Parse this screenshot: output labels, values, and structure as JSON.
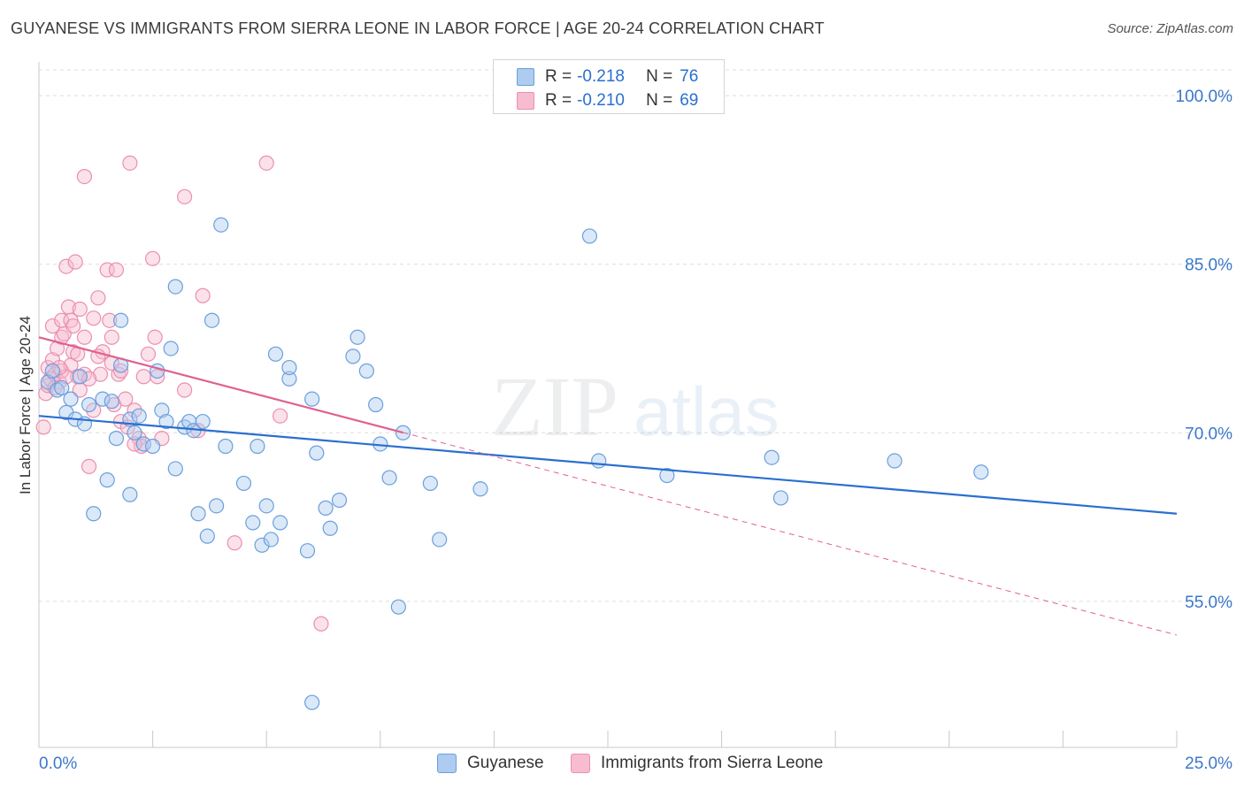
{
  "title": "GUYANESE VS IMMIGRANTS FROM SIERRA LEONE IN LABOR FORCE | AGE 20-24 CORRELATION CHART",
  "source": "Source: ZipAtlas.com",
  "colors": {
    "blue_fill": "#aecbf0",
    "blue_stroke": "#6a9fdc",
    "blue_line": "#2a6fd0",
    "pink_fill": "#f7bcd0",
    "pink_stroke": "#eb8fb0",
    "pink_line": "#e0608f",
    "axis_label": "#3b78c9",
    "grid": "#dddddd"
  },
  "stats_legend": [
    {
      "r_label": "R =",
      "r_value": "-0.218",
      "n_label": "N =",
      "n_value": "76"
    },
    {
      "r_label": "R =",
      "r_value": "-0.210",
      "n_label": "N =",
      "n_value": "69"
    }
  ],
  "chart_data": {
    "type": "scatter",
    "xlabel": "",
    "ylabel": "In Labor Force | Age 20-24",
    "xlim": [
      0,
      25
    ],
    "ylim": [
      42,
      103
    ],
    "x_tick_labels": [
      "0.0%",
      "25.0%"
    ],
    "y_ticks": [
      55,
      70,
      85,
      100
    ],
    "y_tick_labels": [
      "55.0%",
      "70.0%",
      "85.0%",
      "100.0%"
    ],
    "grid": true,
    "legend_position": "bottom-center",
    "series": [
      {
        "name": "Guyanese",
        "trend": {
          "x0": 0.0,
          "y0": 71.5,
          "x1": 25.0,
          "y1": 62.8,
          "dashed_from": null
        },
        "points": [
          [
            0.2,
            74.5
          ],
          [
            0.3,
            75.5
          ],
          [
            0.4,
            73.8
          ],
          [
            0.5,
            74
          ],
          [
            0.6,
            71.8
          ],
          [
            0.7,
            73
          ],
          [
            0.8,
            71.2
          ],
          [
            0.9,
            75
          ],
          [
            1.0,
            70.8
          ],
          [
            1.1,
            72.5
          ],
          [
            1.2,
            62.8
          ],
          [
            1.4,
            73
          ],
          [
            1.5,
            65.8
          ],
          [
            1.6,
            72.8
          ],
          [
            1.7,
            69.5
          ],
          [
            1.8,
            80
          ],
          [
            1.8,
            76
          ],
          [
            2.0,
            64.5
          ],
          [
            2.0,
            71.2
          ],
          [
            2.1,
            70
          ],
          [
            2.2,
            71.5
          ],
          [
            2.3,
            69
          ],
          [
            2.5,
            68.8
          ],
          [
            2.6,
            75.5
          ],
          [
            2.7,
            72
          ],
          [
            2.8,
            71
          ],
          [
            2.9,
            77.5
          ],
          [
            3.0,
            83
          ],
          [
            3.0,
            66.8
          ],
          [
            3.2,
            70.5
          ],
          [
            3.3,
            71
          ],
          [
            3.4,
            70.2
          ],
          [
            3.5,
            62.8
          ],
          [
            3.6,
            71
          ],
          [
            3.7,
            60.8
          ],
          [
            3.8,
            80
          ],
          [
            3.9,
            63.5
          ],
          [
            4.0,
            88.5
          ],
          [
            4.1,
            68.8
          ],
          [
            4.5,
            65.5
          ],
          [
            4.7,
            62
          ],
          [
            4.8,
            68.8
          ],
          [
            4.9,
            60
          ],
          [
            5.0,
            63.5
          ],
          [
            5.1,
            60.5
          ],
          [
            5.2,
            77
          ],
          [
            5.3,
            62
          ],
          [
            5.5,
            74.8
          ],
          [
            5.5,
            75.8
          ],
          [
            5.9,
            59.5
          ],
          [
            6.0,
            73
          ],
          [
            6.1,
            68.2
          ],
          [
            6.3,
            63.3
          ],
          [
            6.4,
            61.5
          ],
          [
            6.6,
            64
          ],
          [
            6.9,
            76.8
          ],
          [
            7.0,
            78.5
          ],
          [
            7.2,
            75.5
          ],
          [
            7.4,
            72.5
          ],
          [
            7.5,
            69
          ],
          [
            7.7,
            66
          ],
          [
            7.9,
            54.5
          ],
          [
            8.0,
            70
          ],
          [
            8.6,
            65.5
          ],
          [
            8.8,
            60.5
          ],
          [
            9.7,
            65
          ],
          [
            12.1,
            87.5
          ],
          [
            12.3,
            67.5
          ],
          [
            13.8,
            66.2
          ],
          [
            16.1,
            67.8
          ],
          [
            16.3,
            64.2
          ],
          [
            18.8,
            67.5
          ],
          [
            20.7,
            66.5
          ],
          [
            6.0,
            46
          ]
        ]
      },
      {
        "name": "Immigrants from Sierra Leone",
        "trend": {
          "x0": 0.0,
          "y0": 78.5,
          "x1": 25.0,
          "y1": 52.0,
          "dashed_from": 8.0
        },
        "points": [
          [
            0.1,
            70.5
          ],
          [
            0.15,
            73.5
          ],
          [
            0.2,
            75.8
          ],
          [
            0.2,
            74.2
          ],
          [
            0.25,
            74.8
          ],
          [
            0.3,
            76.5
          ],
          [
            0.3,
            79.5
          ],
          [
            0.35,
            75.2
          ],
          [
            0.4,
            77.5
          ],
          [
            0.45,
            74.5
          ],
          [
            0.5,
            80
          ],
          [
            0.5,
            78.5
          ],
          [
            0.5,
            75.5
          ],
          [
            0.55,
            78.8
          ],
          [
            0.6,
            84.8
          ],
          [
            0.65,
            81.2
          ],
          [
            0.7,
            80
          ],
          [
            0.7,
            76
          ],
          [
            0.75,
            77.2
          ],
          [
            0.8,
            85.2
          ],
          [
            0.85,
            77
          ],
          [
            0.85,
            75
          ],
          [
            0.9,
            81
          ],
          [
            0.9,
            73.8
          ],
          [
            1.0,
            75.2
          ],
          [
            1.0,
            78.5
          ],
          [
            1.0,
            92.8
          ],
          [
            1.1,
            67
          ],
          [
            1.2,
            72
          ],
          [
            1.2,
            80.2
          ],
          [
            1.3,
            82
          ],
          [
            1.35,
            75.2
          ],
          [
            1.4,
            77.2
          ],
          [
            1.5,
            84.5
          ],
          [
            1.55,
            80
          ],
          [
            1.6,
            78.5
          ],
          [
            1.6,
            76.2
          ],
          [
            1.65,
            72.5
          ],
          [
            1.7,
            84.5
          ],
          [
            1.75,
            75.2
          ],
          [
            1.8,
            71
          ],
          [
            1.9,
            73
          ],
          [
            1.95,
            70.5
          ],
          [
            2.0,
            94
          ],
          [
            2.1,
            72
          ],
          [
            2.2,
            69.5
          ],
          [
            2.25,
            68.8
          ],
          [
            2.3,
            75
          ],
          [
            2.4,
            77
          ],
          [
            2.5,
            85.5
          ],
          [
            2.55,
            78.5
          ],
          [
            2.6,
            75
          ],
          [
            2.7,
            69.5
          ],
          [
            3.2,
            91
          ],
          [
            3.2,
            73.8
          ],
          [
            3.5,
            70.2
          ],
          [
            3.6,
            82.2
          ],
          [
            4.3,
            60.2
          ],
          [
            5.0,
            94
          ],
          [
            5.3,
            71.5
          ],
          [
            6.2,
            53
          ],
          [
            0.35,
            74
          ],
          [
            0.6,
            75
          ],
          [
            0.75,
            79.5
          ],
          [
            1.1,
            74.8
          ],
          [
            1.3,
            76.8
          ],
          [
            1.8,
            75.5
          ],
          [
            2.1,
            69
          ],
          [
            0.45,
            75.8
          ]
        ]
      }
    ]
  }
}
